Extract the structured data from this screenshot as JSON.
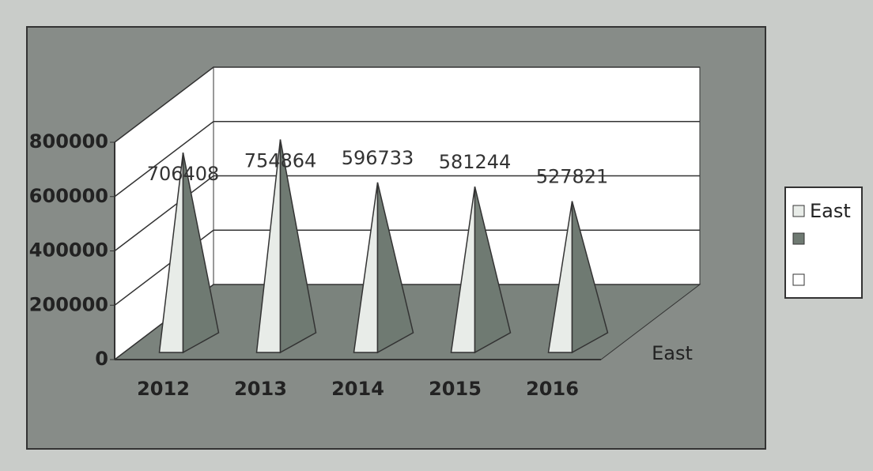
{
  "chart_data": {
    "type": "pyramid3d",
    "categories": [
      "2012",
      "2013",
      "2014",
      "2015",
      "2016"
    ],
    "series": [
      {
        "name": "East",
        "color": "#e8ece8",
        "values": [
          706408,
          754864,
          596733,
          581244,
          527821
        ]
      }
    ],
    "ylim": [
      0,
      800000
    ],
    "yticks": [
      0,
      200000,
      400000,
      600000,
      800000
    ],
    "grid": true,
    "legend": "right"
  }
}
